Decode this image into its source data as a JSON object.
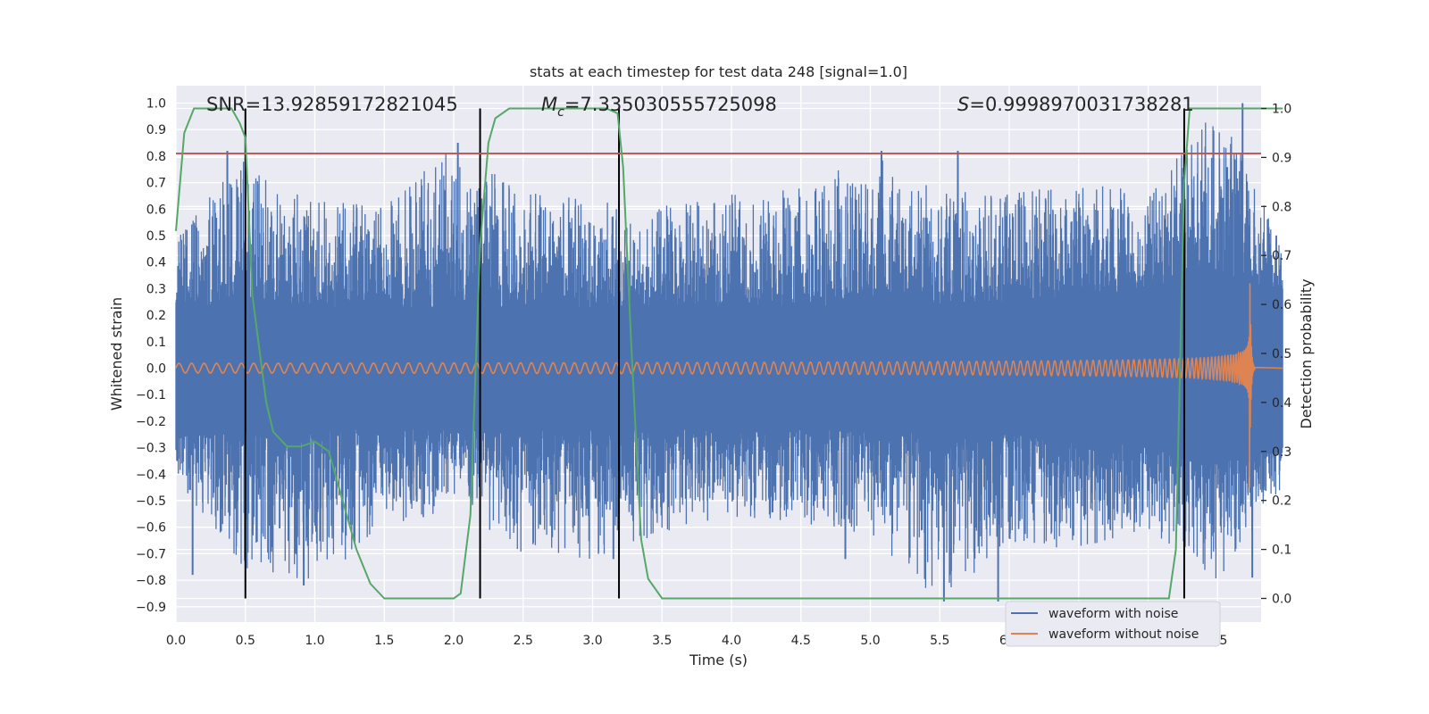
{
  "chart_data": {
    "type": "line",
    "title": "stats at each timestep for test data 248 [signal=1.0]",
    "xlabel": "Time (s)",
    "ylabel": "Whitened strain",
    "y2label": "Detection probability",
    "xlim": [
      0.0,
      8.0
    ],
    "ylim": [
      -0.97,
      1.08
    ],
    "y2lim": [
      -0.05,
      1.03
    ],
    "xticks": [
      "0.0",
      "0.5",
      "1.0",
      "1.5",
      "2.0",
      "2.5",
      "3.0",
      "3.5",
      "4.0",
      "4.5",
      "5.0",
      "5.5",
      "6.0",
      "6.5",
      "7.0",
      "7.5"
    ],
    "yticks": [
      "1.0",
      "0.9",
      "0.8",
      "0.7",
      "0.6",
      "0.5",
      "0.4",
      "0.3",
      "0.2",
      "0.1",
      "0.0",
      "−0.1",
      "−0.2",
      "−0.3",
      "−0.4",
      "−0.5",
      "−0.6",
      "−0.7",
      "−0.8",
      "−0.9"
    ],
    "y2ticks": [
      "1.0",
      "0.9",
      "0.8",
      "0.7",
      "0.6",
      "0.5",
      "0.4",
      "0.3",
      "0.2",
      "0.1",
      "0.0"
    ],
    "grid": true,
    "legend_position": "lower-right",
    "annotations": {
      "snr_label": "SNR",
      "snr_value": "=13.92859172821045",
      "mc_label": "M",
      "mc_sub": "c",
      "mc_value": "=7.335030555725098",
      "s_label": "S",
      "s_value": "=0.9998970031738281"
    },
    "threshold_y": 0.81,
    "vertical_markers_x": [
      0.5,
      2.19,
      3.19,
      7.26
    ],
    "series": [
      {
        "name": "waveform with noise",
        "color": "#4c72b0",
        "envelope": {
          "t": [
            0.0,
            0.5,
            1.0,
            1.5,
            2.0,
            2.5,
            3.0,
            3.5,
            4.0,
            4.5,
            5.0,
            5.5,
            6.0,
            6.5,
            7.0,
            7.5,
            7.97
          ],
          "core": [
            0.23,
            0.23,
            0.23,
            0.23,
            0.23,
            0.23,
            0.23,
            0.23,
            0.23,
            0.23,
            0.23,
            0.24,
            0.25,
            0.27,
            0.3,
            0.34,
            0.3
          ],
          "peak_pos": [
            0.48,
            0.83,
            0.63,
            0.62,
            0.85,
            0.66,
            0.65,
            0.61,
            0.66,
            0.68,
            0.82,
            0.67,
            0.66,
            0.72,
            0.65,
            1.0,
            0.46
          ],
          "peak_neg": [
            -0.42,
            -0.79,
            -0.82,
            -0.61,
            -0.53,
            -0.7,
            -0.72,
            -0.62,
            -0.56,
            -0.59,
            -0.63,
            -0.89,
            -0.66,
            -0.69,
            -0.61,
            -0.8,
            -0.45
          ]
        },
        "spikes": [
          {
            "x": 0.37,
            "y": 0.82
          },
          {
            "x": 0.12,
            "y": -0.78
          },
          {
            "x": 0.92,
            "y": -0.82
          },
          {
            "x": 2.03,
            "y": 0.85
          },
          {
            "x": 5.08,
            "y": 0.82
          },
          {
            "x": 5.53,
            "y": -0.88
          },
          {
            "x": 5.63,
            "y": 0.82
          },
          {
            "x": 5.92,
            "y": -0.88
          },
          {
            "x": 7.68,
            "y": 1.0
          },
          {
            "x": 7.75,
            "y": -0.79
          },
          {
            "x": 3.15,
            "y": -0.72
          },
          {
            "x": 4.82,
            "y": -0.72
          }
        ]
      },
      {
        "name": "waveform without noise",
        "color": "#dd8452",
        "chirp": {
          "t_merge": 7.73,
          "amplitude_start": 0.02,
          "amplitude_peak": 0.48,
          "frequency_start_hz": 20,
          "ringdown_end": 7.77
        }
      },
      {
        "name": "detection probability",
        "color": "#55a868",
        "axis": "right",
        "x": [
          0.0,
          0.06,
          0.13,
          0.2,
          0.3,
          0.4,
          0.46,
          0.5,
          0.55,
          0.65,
          0.7,
          0.8,
          0.9,
          1.0,
          1.1,
          1.2,
          1.3,
          1.4,
          1.5,
          1.7,
          1.9,
          2.0,
          2.05,
          2.12,
          2.19,
          2.25,
          2.3,
          2.4,
          3.1,
          3.18,
          3.22,
          3.28,
          3.35,
          3.4,
          3.5,
          3.6,
          7.15,
          7.2,
          7.26,
          7.3,
          7.97
        ],
        "y": [
          0.75,
          0.95,
          1.0,
          1.0,
          1.0,
          1.0,
          0.97,
          0.94,
          0.62,
          0.4,
          0.34,
          0.31,
          0.31,
          0.32,
          0.3,
          0.2,
          0.1,
          0.03,
          0.0,
          0.0,
          0.0,
          0.0,
          0.01,
          0.17,
          0.72,
          0.93,
          0.98,
          1.0,
          1.0,
          0.99,
          0.88,
          0.51,
          0.12,
          0.04,
          0.0,
          0.0,
          0.0,
          0.1,
          0.85,
          1.0,
          1.0
        ]
      }
    ]
  }
}
